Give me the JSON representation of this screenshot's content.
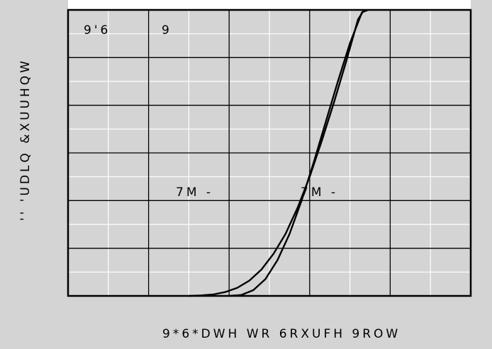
{
  "chart_data": {
    "type": "line",
    "title": "",
    "xlabel": "9*6*DWH WR 6RXUFH 9ROW",
    "ylabel": "'' 'UDLQ &XUUHQW",
    "legend_text": [
      "9'6",
      "9"
    ],
    "annotations": [
      "7M -",
      "7M -"
    ],
    "grid": true,
    "xlim": [
      0,
      10
    ],
    "ylim": [
      0,
      6
    ],
    "series": [
      {
        "x": [
          3.0,
          3.3,
          3.6,
          3.9,
          4.2,
          4.5,
          4.8,
          5.1,
          5.4,
          5.7,
          6.0,
          6.3,
          6.6,
          6.9,
          7.2,
          7.35
        ],
        "y": [
          0.0,
          0.01,
          0.03,
          0.08,
          0.17,
          0.32,
          0.55,
          0.88,
          1.3,
          1.85,
          2.5,
          3.25,
          4.05,
          4.9,
          5.8,
          6.0
        ]
      },
      {
        "x": [
          4.0,
          4.3,
          4.6,
          4.9,
          5.2,
          5.5,
          5.8,
          6.1,
          6.4,
          6.7,
          7.0,
          7.3,
          7.45
        ],
        "y": [
          0.0,
          0.02,
          0.12,
          0.35,
          0.75,
          1.3,
          2.0,
          2.8,
          3.65,
          4.5,
          5.3,
          5.95,
          6.0
        ]
      }
    ]
  }
}
